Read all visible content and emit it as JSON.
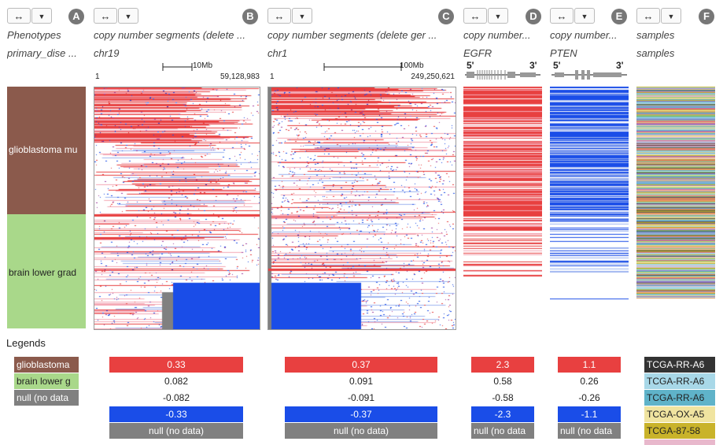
{
  "columns": [
    {
      "badge": "A",
      "title": "Phenotypes",
      "subtitle": "primary_dise ..."
    },
    {
      "badge": "B",
      "title": "copy number segments (delete ...",
      "subtitle": "chr19",
      "scale_label": "10Mb",
      "start": "1",
      "end": "59,128,983"
    },
    {
      "badge": "C",
      "title": "copy number segments (delete ger ...",
      "subtitle": "chr1",
      "scale_label": "100Mb",
      "start": "1",
      "end": "249,250,621"
    },
    {
      "badge": "D",
      "title": "copy number...",
      "subtitle": "EGFR",
      "five": "5'",
      "three": "3'"
    },
    {
      "badge": "E",
      "title": "copy number...",
      "subtitle": "PTEN",
      "five": "5'",
      "three": "3'"
    },
    {
      "badge": "F",
      "title": "samples",
      "subtitle": "samples"
    }
  ],
  "controls": {
    "arrows_icon": "↔",
    "dropdown_icon": "▼"
  },
  "phenotype_groups": [
    {
      "label": "glioblastoma mu",
      "color": "#8b5a4c"
    },
    {
      "label": "brain lower grad",
      "color": "#a9d88a"
    }
  ],
  "legends": {
    "title": "Legends",
    "phenotype": [
      {
        "label": "glioblastoma",
        "color": "#8b5a4c",
        "text_color": "#ffffff"
      },
      {
        "label": "brain lower g",
        "color": "#a9d88a",
        "text_color": "#222222"
      },
      {
        "label": "null (no data",
        "color": "#808080",
        "text_color": "#ffffff"
      }
    ],
    "seg_b": [
      "0.33",
      "0.082",
      "-0.082",
      "-0.33",
      "null (no data)"
    ],
    "seg_c": [
      "0.37",
      "0.091",
      "-0.091",
      "-0.37",
      "null (no data)"
    ],
    "seg_d": [
      "2.3",
      "0.58",
      "-0.58",
      "-2.3",
      "null (no data"
    ],
    "seg_e": [
      "1.1",
      "0.26",
      "-0.26",
      "-1.1",
      "null (no data"
    ],
    "samples": [
      {
        "label": "TCGA-RR-A6",
        "color": "#333333",
        "text_color": "#ffffff"
      },
      {
        "label": "TCGA-RR-A6",
        "color": "#a8d8e8",
        "text_color": "#222222"
      },
      {
        "label": "TCGA-RR-A6",
        "color": "#5fb3c9",
        "text_color": "#222222"
      },
      {
        "label": "TCGA-OX-A5",
        "color": "#f0e4a0",
        "text_color": "#222222"
      },
      {
        "label": "TCGA-87-58",
        "color": "#c9b32a",
        "text_color": "#222222"
      },
      {
        "label": "",
        "color": "#e8b8cc",
        "text_color": "#222222"
      }
    ],
    "colors": {
      "high": "#e84040",
      "low": "#1a4de8",
      "null": "#808080"
    }
  }
}
